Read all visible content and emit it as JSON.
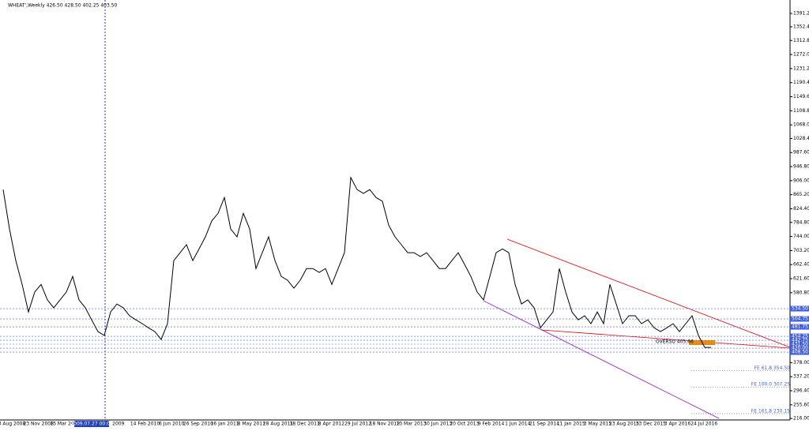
{
  "chart_data": {
    "type": "line",
    "title": "WHEAT',Weekly 426.50 428.50 402.25 403.50",
    "color": "#000000",
    "x_axis_labels": [
      "3 Aug 2008",
      "23 Nov 2008",
      "15 Mar 2009",
      "2009.07.27 00:00",
      "2009",
      "14 Feb 2010",
      "6 Jun 2010",
      "26 Sep 2010",
      "16 Jan 2011",
      "8 May 2011",
      "28 Aug 2011",
      "18 Dec 2011",
      "8 Apr 2012",
      "29 Jul 2012",
      "18 Nov 2012",
      "10 Mar 2013",
      "30 Jun 2013",
      "20 Oct 2013",
      "9 Feb 2014",
      "1 Jun 2014",
      "21 Sep 2014",
      "11 Jan 2015",
      "3 May 2015",
      "23 Aug 2015",
      "13 Dec 2015",
      "3 Apr 2016",
      "24 Jul 2016"
    ],
    "values": [
      880,
      766,
      674,
      605,
      525,
      583,
      605,
      560,
      537,
      560,
      583,
      628,
      560,
      537,
      502,
      468,
      457,
      525,
      548,
      537,
      514,
      502,
      491,
      479,
      468,
      445,
      491,
      674,
      697,
      720,
      674,
      708,
      743,
      789,
      811,
      857,
      766,
      743,
      811,
      766,
      651,
      697,
      743,
      674,
      628,
      617,
      594,
      617,
      651,
      651,
      640,
      651,
      605,
      651,
      697,
      915,
      880,
      869,
      880,
      857,
      846,
      777,
      743,
      720,
      697,
      697,
      686,
      697,
      674,
      651,
      651,
      674,
      697,
      663,
      628,
      583,
      560,
      628,
      697,
      708,
      697,
      605,
      548,
      560,
      537,
      479,
      502,
      525,
      651,
      583,
      525,
      502,
      514,
      491,
      525,
      491,
      605,
      548,
      491,
      514,
      514,
      491,
      502,
      479,
      468,
      479,
      491,
      468,
      491,
      514,
      457,
      422,
      422
    ],
    "ylim": [
      211.6,
      1430.2
    ],
    "yticks": [
      {
        "value": 1391.2,
        "label": "1391.20"
      },
      {
        "value": 1352.4,
        "label": "1352.40"
      },
      {
        "value": 1312.8,
        "label": "1312.80"
      },
      {
        "value": 1272,
        "label": "1272.00"
      },
      {
        "value": 1231.2,
        "label": "1231.20"
      },
      {
        "value": 1190.4,
        "label": "1190.40"
      },
      {
        "value": 1149.6,
        "label": "1149.60"
      },
      {
        "value": 1108.8,
        "label": "1108.80"
      },
      {
        "value": 1068,
        "label": "1068.00"
      },
      {
        "value": 1028.4,
        "label": "1028.40"
      },
      {
        "value": 987.6,
        "label": "987.60"
      },
      {
        "value": 946.8,
        "label": "946.80"
      },
      {
        "value": 906,
        "label": "906.00"
      },
      {
        "value": 865.2,
        "label": "865.20"
      },
      {
        "value": 824.4,
        "label": "824.40"
      },
      {
        "value": 784.8,
        "label": "784.80"
      },
      {
        "value": 744,
        "label": "744.00"
      },
      {
        "value": 703.2,
        "label": "703.20"
      },
      {
        "value": 662.4,
        "label": "662.40"
      },
      {
        "value": 621.6,
        "label": "621.60"
      },
      {
        "value": 580.8,
        "label": "580.80"
      },
      {
        "value": 378,
        "label": "378.00"
      },
      {
        "value": 337.2,
        "label": "337.20"
      },
      {
        "value": 296.4,
        "label": "296.40"
      },
      {
        "value": 255.6,
        "label": "255.60"
      },
      {
        "value": 216,
        "label": "216.00"
      }
    ],
    "levels": [
      {
        "value": 534.5,
        "label": "534.50"
      },
      {
        "value": 504.75,
        "label": "504.75"
      },
      {
        "value": 481.75,
        "label": "481.75"
      },
      {
        "value": 454.25,
        "label": "454.25"
      },
      {
        "value": 442.75,
        "label": "442.75"
      },
      {
        "value": 431.5,
        "label": "431.50"
      },
      {
        "value": 420,
        "label": "420.00"
      },
      {
        "value": 408.5,
        "label": "408.50"
      }
    ],
    "fibo": [
      {
        "value": 354.5,
        "label": "FE 61.8 354.50"
      },
      {
        "value": 307.25,
        "label": "FE 100.0 307.25"
      },
      {
        "value": 230.15,
        "label": "FE 161.8 230.15"
      }
    ],
    "annotation": "OVERSU 405.66"
  }
}
